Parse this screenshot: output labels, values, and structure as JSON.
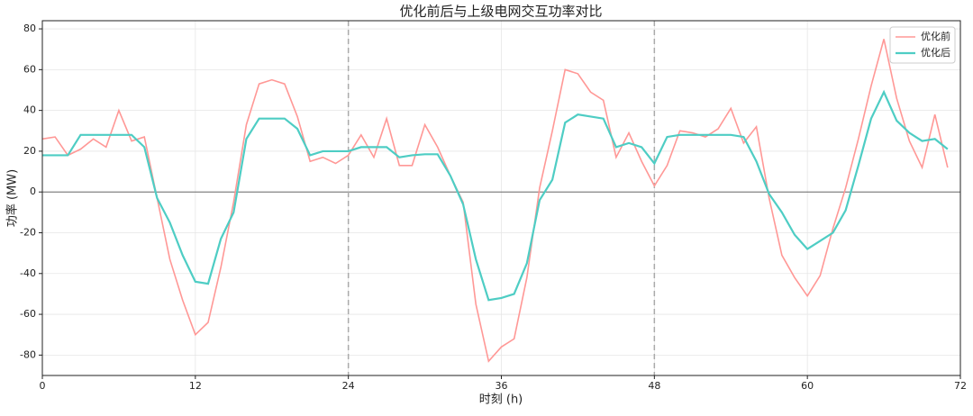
{
  "chart_data": {
    "type": "line",
    "title": "优化前后与上级电网交互功率对比",
    "xlabel": "时刻 (h)",
    "ylabel": "功率 (MW)",
    "x": [
      0,
      1,
      2,
      3,
      4,
      5,
      6,
      7,
      8,
      9,
      10,
      11,
      12,
      13,
      14,
      15,
      16,
      17,
      18,
      19,
      20,
      21,
      22,
      23,
      24,
      25,
      26,
      27,
      28,
      29,
      30,
      31,
      32,
      33,
      34,
      35,
      36,
      37,
      38,
      39,
      40,
      41,
      42,
      43,
      44,
      45,
      46,
      47,
      48,
      49,
      50,
      51,
      52,
      53,
      54,
      55,
      56,
      57,
      58,
      59,
      60,
      61,
      62,
      63,
      64,
      65,
      66,
      67,
      68,
      69,
      70,
      71
    ],
    "series": [
      {
        "name": "优化前",
        "color": "#ff9896",
        "width": 1.6,
        "values": [
          26,
          27,
          18,
          21,
          26,
          22,
          40,
          25,
          27,
          -3,
          -33,
          -53,
          -70,
          -64,
          -37,
          -5,
          33,
          53,
          55,
          53,
          37,
          15,
          17,
          14,
          18,
          28,
          17,
          36,
          13,
          13,
          33,
          22,
          8,
          -5,
          -55,
          -83,
          -76,
          -72,
          -42,
          2,
          30,
          60,
          58,
          49,
          45,
          17,
          29,
          15,
          3,
          13,
          30,
          29,
          27,
          31,
          41,
          24,
          32,
          -3,
          -31,
          -42,
          -51,
          -41,
          -18,
          2,
          26,
          52,
          75,
          46,
          25,
          12,
          38,
          12
        ]
      },
      {
        "name": "优化后",
        "color": "#4ecdc4",
        "width": 2.2,
        "values": [
          18,
          18,
          18,
          28,
          28,
          28,
          28,
          28,
          22,
          -3,
          -15,
          -31,
          -44,
          -45,
          -23,
          -10,
          26,
          36,
          36,
          36,
          31,
          18,
          20,
          20,
          20,
          22,
          22,
          22,
          17,
          18,
          18.5,
          18.5,
          8,
          -6,
          -33,
          -53,
          -52,
          -50,
          -35,
          -4,
          6,
          34,
          38,
          37,
          36,
          22,
          24,
          22,
          14,
          27,
          28,
          28,
          28,
          28,
          28,
          27,
          15,
          -1,
          -10,
          -21,
          -28,
          -24,
          -20,
          -9,
          13,
          36,
          49,
          35,
          29,
          25,
          26,
          21
        ]
      }
    ],
    "xlim": [
      0,
      72
    ],
    "xticks": [
      0,
      12,
      24,
      36,
      48,
      60,
      72
    ],
    "ylim": [
      -90,
      84
    ],
    "yticks": [
      -80,
      -60,
      -40,
      -20,
      0,
      20,
      40,
      60,
      80
    ],
    "vlines": [
      24,
      48
    ],
    "hlines": [
      0
    ],
    "grid": true,
    "legend": "upper-right"
  }
}
